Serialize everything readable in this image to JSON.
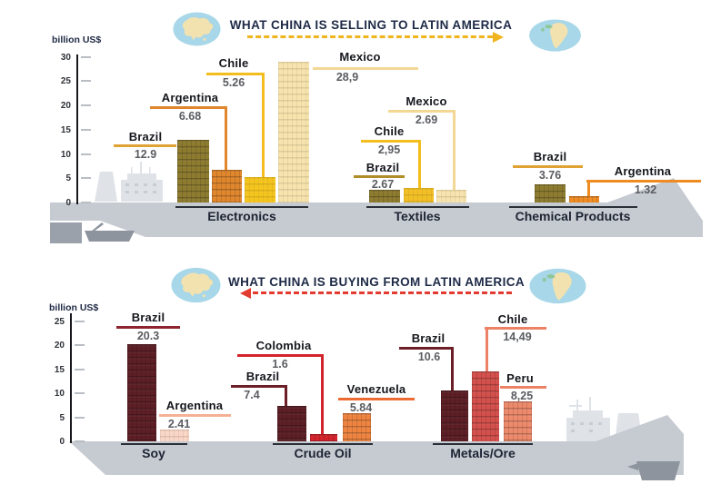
{
  "colors": {
    "header_text": "#1d2946",
    "sell_arrow": "#f0b41e",
    "buy_arrow": "#e23b30",
    "ship_hull": "#c6cad1",
    "ship_superstructure": "#dfe3e8",
    "tugboat": "#9aa1ab",
    "globe_water": "#a7d7e8",
    "globe_land": "#f2e2b0",
    "globe_land_green": "#8fc79a"
  },
  "chart_data": [
    {
      "type": "bar",
      "title": "WHAT CHINA IS SELLING TO LATIN AMERICA",
      "ylabel": "billion US$",
      "ylim": [
        0,
        30
      ],
      "yticks": [
        30,
        25,
        20,
        15,
        10,
        5,
        0
      ],
      "legend_position": "none",
      "grid": false,
      "groups": [
        {
          "category": "Electronics",
          "bars": [
            {
              "country": "Brazil",
              "value": 12.9,
              "label": "12.9",
              "color": "#8d7b2f",
              "accent": "#e0a233"
            },
            {
              "country": "Argentina",
              "value": 6.68,
              "label": "6.68",
              "color": "#e0862c",
              "accent": "#e0862c"
            },
            {
              "country": "Chile",
              "value": 5.26,
              "label": "5.26",
              "color": "#f5c51f",
              "accent": "#f3bd1d"
            },
            {
              "country": "Mexico",
              "value": 28.9,
              "label": "28,9",
              "color": "#f6e3ad",
              "accent": "#f2d894"
            }
          ]
        },
        {
          "category": "Textiles",
          "bars": [
            {
              "country": "Brazil",
              "value": 2.67,
              "label": "2.67",
              "color": "#8d7b2f",
              "accent": "#b08d28"
            },
            {
              "country": "Chile",
              "value": 2.95,
              "label": "2,95",
              "color": "#f2c026",
              "accent": "#f3bd1d"
            },
            {
              "country": "Mexico",
              "value": 2.69,
              "label": "2.69",
              "color": "#f6e3ad",
              "accent": "#f2d894"
            }
          ]
        },
        {
          "category": "Chemical Products",
          "bars": [
            {
              "country": "Brazil",
              "value": 3.76,
              "label": "3.76",
              "color": "#8d7b2f",
              "accent": "#e0a233"
            },
            {
              "country": "Argentina",
              "value": 1.32,
              "label": "1.32",
              "color": "#ef8b23",
              "accent": "#ef8b23"
            }
          ]
        }
      ]
    },
    {
      "type": "bar",
      "title": "WHAT CHINA IS BUYING FROM LATIN AMERICA",
      "ylabel": "billion US$",
      "ylim": [
        0,
        25
      ],
      "yticks": [
        25,
        20,
        15,
        10,
        5,
        0
      ],
      "legend_position": "none",
      "grid": false,
      "groups": [
        {
          "category": "Soy",
          "bars": [
            {
              "country": "Brazil",
              "value": 20.3,
              "label": "20.3",
              "color": "#5d1f26",
              "accent": "#8d2430"
            },
            {
              "country": "Argentina",
              "value": 2.41,
              "label": "2.41",
              "color": "#f9d6c5",
              "accent": "#f5b193"
            }
          ]
        },
        {
          "category": "Crude Oil",
          "bars": [
            {
              "country": "Brazil",
              "value": 7.4,
              "label": "7.4",
              "color": "#5d1f26",
              "accent": "#6d1f28"
            },
            {
              "country": "Colombia",
              "value": 1.6,
              "label": "1.6",
              "color": "#d3232c",
              "accent": "#d3232c"
            },
            {
              "country": "Venezuela",
              "value": 5.84,
              "label": "5.84",
              "color": "#ee8440",
              "accent": "#ee6a33"
            }
          ]
        },
        {
          "category": "Metals/Ore",
          "bars": [
            {
              "country": "Brazil",
              "value": 10.6,
              "label": "10.6",
              "color": "#5d1f26",
              "accent": "#6d1f28"
            },
            {
              "country": "Chile",
              "value": 14.49,
              "label": "14,49",
              "color": "#d4504c",
              "accent": "#ed8166"
            },
            {
              "country": "Peru",
              "value": 8.25,
              "label": "8,25",
              "color": "#ee8a6c",
              "accent": "#ed8166"
            }
          ]
        }
      ]
    }
  ]
}
